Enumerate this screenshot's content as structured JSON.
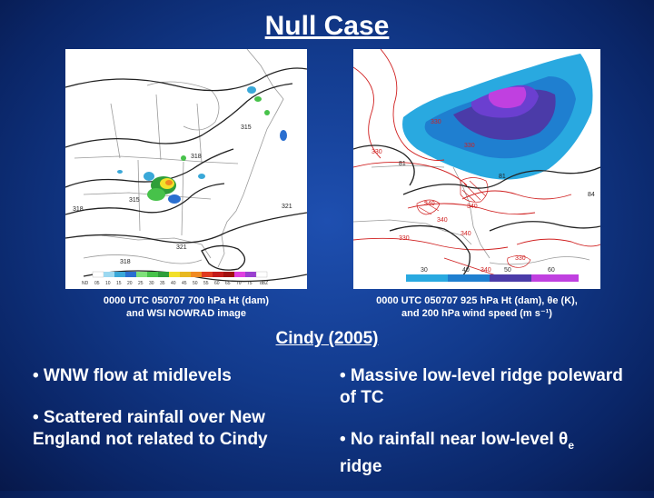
{
  "title": "Null Case",
  "left_panel": {
    "caption_line1": "0000 UTC 050707 700 hPa Ht (dam)",
    "caption_line2": "and WSI NOWRAD image",
    "contour_labels": [
      "315",
      "318",
      "318",
      "315",
      "321",
      "321",
      "318"
    ],
    "legend_labels": [
      "ND",
      "05",
      "10",
      "15",
      "20",
      "25",
      "30",
      "35",
      "40",
      "45",
      "50",
      "55",
      "60",
      "65",
      "70",
      "75",
      "dBZ"
    ]
  },
  "right_panel": {
    "caption_line1": "0000 UTC 050707 925 hPa Ht (dam), θe (K),",
    "caption_line2": "and 200 hPa wind speed (m s⁻¹)",
    "contour_labels": [
      "330",
      "330",
      "330",
      "81",
      "84",
      "340",
      "340",
      "340",
      "340",
      "330",
      "330",
      "340",
      "81"
    ],
    "colorbar_labels": [
      "30",
      "40",
      "50",
      "60"
    ]
  },
  "subtitle": "Cindy (2005)",
  "bullets_left": [
    "• WNW flow at midlevels",
    "• Scattered rainfall over New England not related to Cindy"
  ],
  "bullets_right": {
    "item1": "• Massive low-level ridge poleward of TC",
    "item2_prefix": "• No rainfall near low-level θ",
    "item2_sub": "e",
    "item2_suffix": " ridge"
  }
}
